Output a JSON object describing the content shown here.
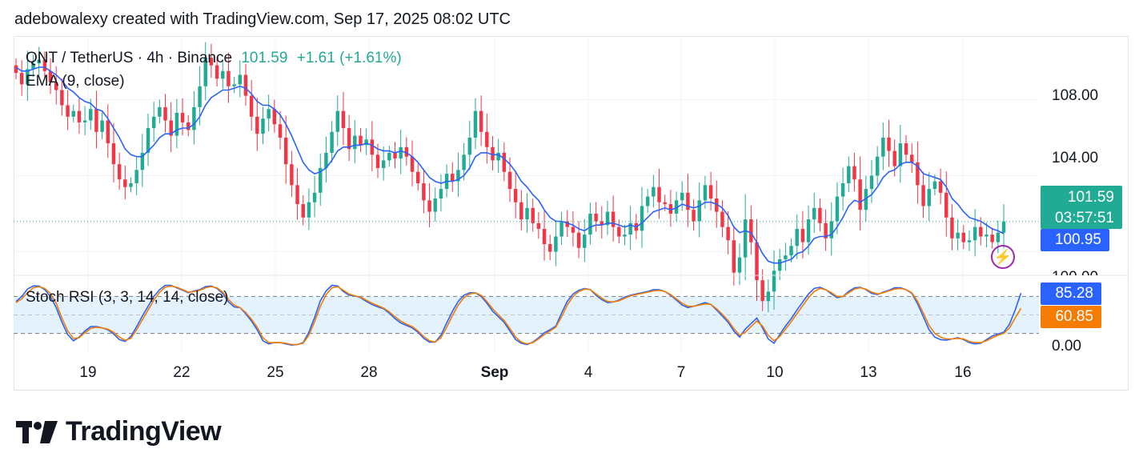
{
  "caption": "adebowalexy created with TradingView.com, Sep 17, 2025 08:02 UTC",
  "legend": {
    "symbol": "QNT / TetherUS · 4h · Binance",
    "last": "101.59",
    "change": "+1.61 (+1.61%)",
    "ema": "EMA (9, close)",
    "stoch": "Stoch RSI (3, 3, 14, 14, close)"
  },
  "price_axis": [
    "108.00",
    "104.00",
    "100.00"
  ],
  "rsi_axis": [
    "0.00"
  ],
  "tags": {
    "price": "101.59",
    "countdown": "03:57:51",
    "ema": "100.95",
    "k": "85.28",
    "d": "60.85"
  },
  "x_labels": [
    "19",
    "22",
    "25",
    "28",
    "Sep",
    "4",
    "7",
    "10",
    "13",
    "16"
  ],
  "logo_text": "TradingView",
  "colors": {
    "up": "#22ab94",
    "down": "#f23645",
    "ema": "#2962ff",
    "k": "#2962ff",
    "d": "#f57c00",
    "band": "#e3f2fd"
  },
  "chart_data": [
    {
      "type": "candlestick",
      "title": "QNT / TetherUS · 4h · Binance",
      "ylim": [
        98.8,
        111.3
      ],
      "x_ticks": [
        "19",
        "22",
        "25",
        "28",
        "Sep",
        "4",
        "7",
        "10",
        "13",
        "16"
      ],
      "close": [
        109.4,
        108.8,
        109.6,
        109.9,
        110.1,
        109.5,
        108.9,
        108.5,
        107.7,
        107.1,
        107.4,
        106.8,
        106.9,
        107.5,
        106.3,
        106.9,
        105.7,
        104.6,
        103.8,
        103.4,
        103.6,
        104.3,
        105.2,
        106.5,
        107.1,
        107.6,
        106.9,
        106.1,
        107.3,
        106.8,
        106.4,
        107.6,
        108.7,
        110.2,
        109.8,
        109.1,
        109.5,
        108.7,
        108.8,
        109.3,
        108.2,
        107.1,
        106.2,
        107.0,
        107.5,
        106.7,
        106.0,
        104.6,
        103.5,
        102.5,
        101.8,
        102.6,
        103.1,
        104.4,
        105.2,
        106.3,
        107.4,
        106.5,
        105.4,
        106.1,
        105.6,
        105.9,
        105.1,
        104.4,
        104.8,
        105.2,
        104.9,
        105.5,
        105.0,
        104.2,
        103.6,
        102.7,
        102.1,
        102.8,
        103.3,
        104.1,
        103.7,
        104.3,
        105.1,
        106.0,
        107.4,
        106.3,
        105.5,
        104.8,
        105.2,
        104.2,
        103.3,
        102.6,
        101.7,
        102.3,
        101.5,
        101.2,
        100.4,
        100.0,
        100.8,
        101.6,
        101.3,
        101.0,
        100.2,
        100.9,
        102.0,
        101.6,
        101.4,
        102.1,
        101.3,
        100.8,
        100.9,
        101.5,
        101.1,
        102.4,
        102.9,
        103.4,
        102.6,
        102.5,
        102.0,
        102.7,
        103.1,
        102.2,
        101.6,
        102.7,
        103.5,
        102.8,
        102.1,
        101.3,
        100.6,
        98.9,
        99.7,
        101.7,
        100.5,
        98.5,
        97.4,
        97.9,
        99.0,
        99.6,
        99.8,
        100.3,
        101.2,
        100.5,
        101.7,
        102.3,
        101.5,
        100.7,
        101.6,
        102.9,
        103.6,
        104.5,
        103.8,
        102.2,
        103.3,
        104.0,
        105.0,
        106.0,
        105.3,
        104.5,
        105.7,
        105.1,
        104.7,
        103.5,
        102.4,
        103.3,
        103.7,
        103.1,
        101.8,
        100.7,
        101.0,
        100.5,
        100.6,
        101.3,
        100.8,
        100.9,
        100.5,
        101.0,
        101.59
      ],
      "ema_9": [
        109.7,
        109.5,
        109.5,
        109.6,
        109.7,
        109.7,
        109.5,
        109.3,
        109.0,
        108.6,
        108.4,
        108.1,
        107.9,
        107.8,
        107.5,
        107.4,
        107.0,
        106.5,
        106.0,
        105.4,
        105.1,
        105.0,
        105.0,
        105.3,
        105.6,
        106.0,
        106.2,
        106.2,
        106.4,
        106.5,
        106.5,
        106.7,
        107.1,
        107.7,
        108.1,
        108.3,
        108.5,
        108.5,
        108.6,
        108.7,
        108.6,
        108.3,
        107.9,
        107.7,
        107.7,
        107.5,
        107.2,
        106.7,
        106.1,
        105.4,
        104.7,
        104.3,
        104.1,
        104.2,
        104.4,
        104.8,
        105.3,
        105.5,
        105.5,
        105.6,
        105.6,
        105.7,
        105.6,
        105.4,
        105.3,
        105.3,
        105.2,
        105.3,
        105.2,
        105.0,
        104.7,
        104.3,
        103.9,
        103.7,
        103.6,
        103.7,
        103.7,
        103.8,
        104.0,
        104.4,
        105.0,
        105.2,
        105.2,
        105.1,
        105.1,
        104.9,
        104.6,
        104.2,
        103.7,
        103.4,
        103.0,
        102.7,
        102.2,
        101.8,
        101.6,
        101.6,
        101.5,
        101.4,
        101.2,
        101.1,
        101.3,
        101.4,
        101.4,
        101.5,
        101.5,
        101.4,
        101.3,
        101.4,
        101.3,
        101.5,
        101.8,
        102.1,
        102.2,
        102.3,
        102.2,
        102.3,
        102.5,
        102.4,
        102.3,
        102.4,
        102.6,
        102.6,
        102.5,
        102.3,
        101.9,
        101.3,
        101.0,
        101.1,
        101.0,
        100.5,
        99.9,
        99.5,
        99.4,
        99.4,
        99.5,
        99.6,
        99.9,
        100.0,
        100.3,
        100.7,
        100.8,
        100.8,
        100.9,
        101.3,
        101.8,
        102.4,
        102.7,
        102.6,
        102.8,
        103.0,
        103.4,
        103.9,
        104.2,
        104.3,
        104.6,
        104.7,
        104.7,
        104.5,
        104.1,
        104.0,
        103.9,
        103.8,
        103.4,
        102.8,
        102.5,
        102.1,
        101.8,
        101.7,
        101.6,
        101.4,
        101.2,
        101.1,
        100.95
      ]
    },
    {
      "type": "line",
      "title": "Stoch RSI (3, 3, 14, 14, close)",
      "ylim": [
        0,
        100
      ],
      "bands": [
        20,
        80
      ],
      "series": [
        {
          "name": "K",
          "values": [
            72,
            80,
            92,
            97,
            97,
            91,
            80,
            62,
            38,
            18,
            8,
            14,
            24,
            31,
            31,
            29,
            26,
            19,
            10,
            7,
            15,
            31,
            48,
            64,
            80,
            91,
            98,
            98,
            94,
            90,
            86,
            89,
            91,
            96,
            97,
            93,
            85,
            71,
            63,
            62,
            52,
            40,
            26,
            8,
            3,
            5,
            5,
            3,
            1,
            2,
            5,
            22,
            46,
            73,
            89,
            98,
            97,
            88,
            82,
            81,
            78,
            72,
            67,
            63,
            60,
            53,
            44,
            37,
            33,
            29,
            22,
            12,
            6,
            6,
            17,
            37,
            56,
            72,
            82,
            86,
            86,
            80,
            69,
            56,
            47,
            38,
            24,
            10,
            4,
            2,
            6,
            13,
            21,
            26,
            32,
            53,
            72,
            84,
            90,
            93,
            91,
            82,
            75,
            70,
            71,
            74,
            79,
            82,
            84,
            86,
            88,
            91,
            91,
            88,
            82,
            74,
            66,
            62,
            64,
            67,
            70,
            67,
            58,
            48,
            38,
            24,
            14,
            27,
            36,
            45,
            29,
            11,
            4,
            18,
            32,
            44,
            58,
            71,
            84,
            93,
            95,
            91,
            84,
            78,
            80,
            88,
            94,
            95,
            91,
            85,
            83,
            87,
            90,
            94,
            94,
            91,
            85,
            68,
            47,
            26,
            14,
            10,
            9,
            11,
            13,
            10,
            5,
            3,
            4,
            10,
            16,
            19,
            22,
            35,
            58,
            85.28
          ]
        },
        {
          "name": "D",
          "values": [
            70,
            76,
            86,
            94,
            96,
            93,
            85,
            69,
            45,
            24,
            12,
            13,
            21,
            28,
            30,
            29,
            27,
            22,
            14,
            9,
            12,
            26,
            42,
            58,
            74,
            87,
            95,
            97,
            95,
            91,
            87,
            88,
            90,
            94,
            96,
            94,
            87,
            75,
            66,
            62,
            54,
            43,
            30,
            13,
            5,
            5,
            5,
            4,
            2,
            2,
            4,
            17,
            39,
            64,
            83,
            94,
            96,
            90,
            84,
            81,
            79,
            74,
            69,
            65,
            61,
            55,
            47,
            40,
            35,
            31,
            24,
            15,
            8,
            6,
            13,
            30,
            49,
            66,
            78,
            84,
            86,
            82,
            72,
            60,
            50,
            41,
            28,
            14,
            6,
            3,
            5,
            11,
            18,
            24,
            30,
            47,
            66,
            80,
            88,
            92,
            91,
            84,
            77,
            72,
            71,
            73,
            77,
            81,
            83,
            85,
            87,
            89,
            90,
            88,
            83,
            76,
            69,
            64,
            64,
            66,
            68,
            67,
            60,
            51,
            41,
            28,
            17,
            22,
            31,
            40,
            32,
            17,
            8,
            15,
            27,
            39,
            52,
            65,
            78,
            88,
            93,
            91,
            86,
            80,
            80,
            86,
            92,
            94,
            92,
            87,
            84,
            86,
            89,
            92,
            93,
            91,
            86,
            72,
            53,
            33,
            20,
            14,
            11,
            11,
            12,
            11,
            7,
            5,
            5,
            8,
            13,
            17,
            20,
            29,
            45,
            60.85
          ]
        }
      ]
    }
  ]
}
